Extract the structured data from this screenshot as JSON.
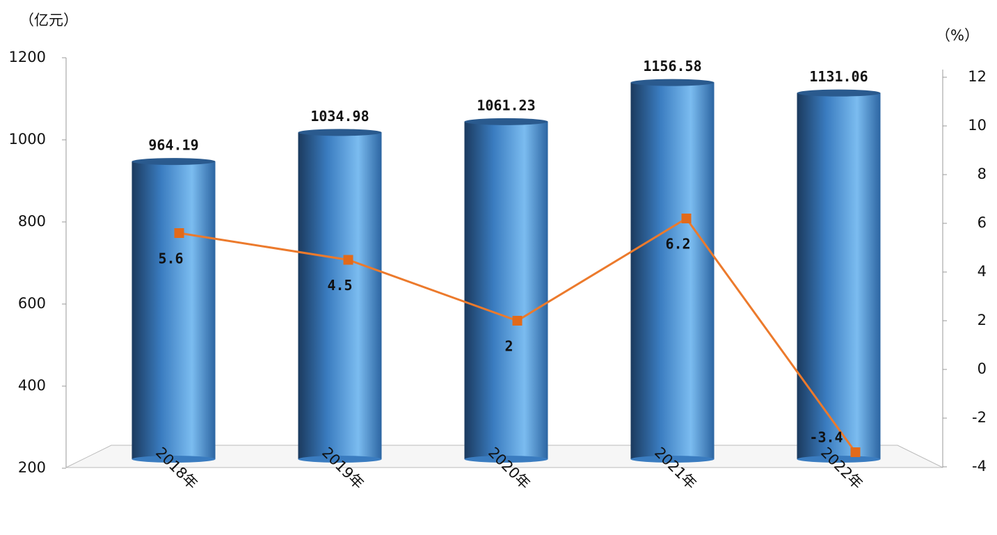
{
  "chart_data": {
    "type": "bar",
    "y_label": "（亿元）",
    "y2_label": "（%）",
    "categories": [
      "2018年",
      "2019年",
      "2020年",
      "2021年",
      "2022年"
    ],
    "series": [
      {
        "type": "bar",
        "color": "#4a8fd6",
        "values": [
          964.19,
          1034.98,
          1061.23,
          1156.58,
          1131.06
        ]
      },
      {
        "type": "line",
        "axis": "y2",
        "color": "#ec7a2c",
        "values": [
          5.6,
          4.5,
          2,
          6.2,
          -3.4
        ]
      }
    ],
    "ylim": [
      200,
      1200
    ],
    "yticks": [
      200,
      400,
      600,
      800,
      1000,
      1200
    ],
    "y2lim": [
      -4,
      12
    ],
    "y2ticks": [
      -4,
      -2,
      0,
      2,
      4,
      6,
      8,
      10,
      12
    ]
  }
}
